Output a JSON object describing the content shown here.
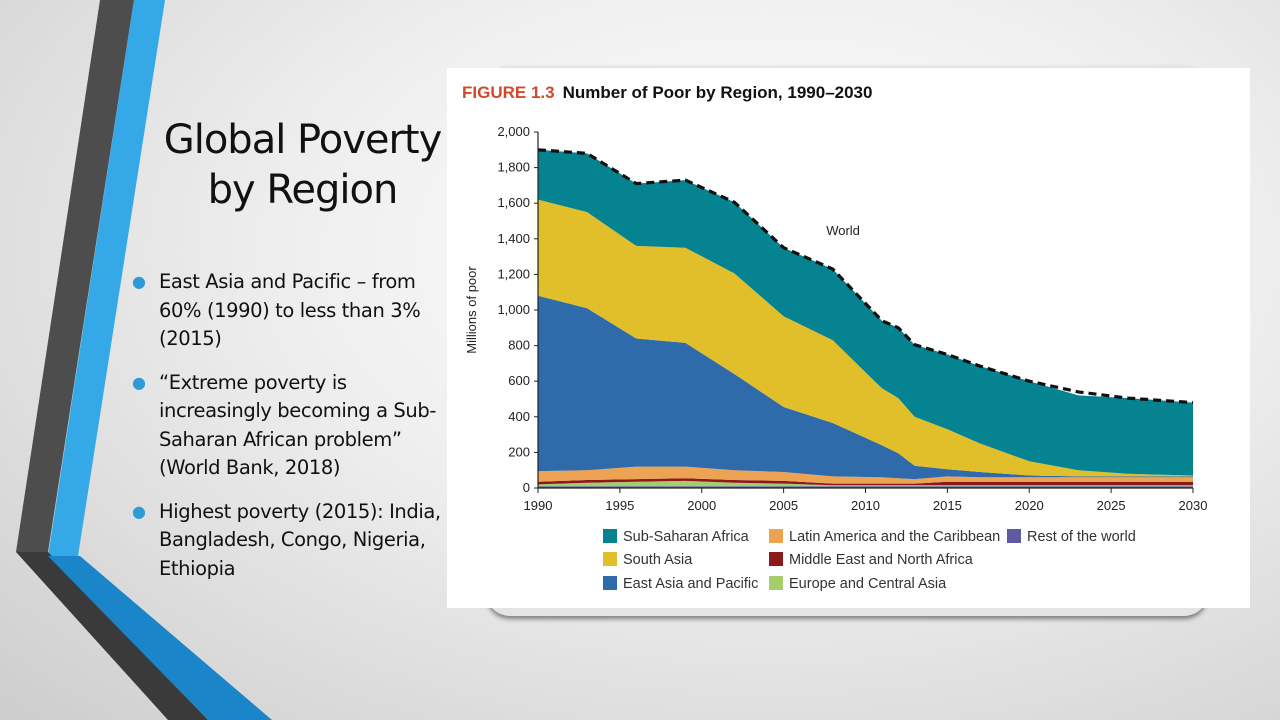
{
  "slide": {
    "title_line1": "Global Poverty",
    "title_line2": "by Region",
    "bullets": [
      "East Asia and Pacific – from 60% (1990) to less than 3% (2015)",
      "“Extreme poverty is increasingly becoming a Sub-Saharan African problem” (World Bank, 2018)",
      "Highest poverty (2015): India, Bangladesh, Congo, Nigeria, Ethiopia"
    ]
  },
  "colors": {
    "figure_label": "#d2492a",
    "accent_blue": "#2e9bd6",
    "stripe_dark": "#4a4a4a",
    "stripe_light_blue": "#35a9e8"
  },
  "chart_data": {
    "type": "area",
    "stacked": true,
    "figure_label": "FIGURE 1.3",
    "title": "Number of Poor by Region, 1990–2030",
    "xlabel": "",
    "ylabel": "Millions of poor",
    "xlim": [
      1990,
      2030
    ],
    "ylim": [
      0,
      2000
    ],
    "x_ticks": [
      1990,
      1995,
      2000,
      2005,
      2010,
      2015,
      2020,
      2025,
      2030
    ],
    "y_ticks": [
      0,
      200,
      400,
      600,
      800,
      1000,
      1200,
      1400,
      1600,
      1800,
      2000
    ],
    "y_tick_labels": [
      "0",
      "200",
      "400",
      "600",
      "800",
      "1,000",
      "1,200",
      "1,400",
      "1,600",
      "1,800",
      "2,000"
    ],
    "x": [
      1990,
      1993,
      1996,
      1999,
      2002,
      2005,
      2008,
      2011,
      2012,
      2013,
      2015,
      2017,
      2020,
      2023,
      2026,
      2030
    ],
    "series": [
      {
        "name": "Rest of the world",
        "color": "#5b5aa3",
        "values": [
          10,
          10,
          10,
          10,
          10,
          10,
          10,
          10,
          10,
          10,
          10,
          10,
          10,
          10,
          10,
          10
        ]
      },
      {
        "name": "Europe and Central Asia",
        "color": "#a6cd6b",
        "values": [
          10,
          20,
          25,
          30,
          20,
          15,
          5,
          5,
          5,
          5,
          5,
          5,
          5,
          5,
          5,
          5
        ]
      },
      {
        "name": "Middle East and North Africa",
        "color": "#8b1a1a",
        "values": [
          15,
          15,
          15,
          15,
          15,
          15,
          10,
          10,
          10,
          10,
          20,
          20,
          20,
          20,
          20,
          20
        ]
      },
      {
        "name": "Latin America and the Caribbean",
        "color": "#eca354",
        "values": [
          60,
          55,
          70,
          65,
          55,
          50,
          40,
          35,
          30,
          25,
          30,
          25,
          25,
          25,
          25,
          25
        ]
      },
      {
        "name": "East Asia and Pacific",
        "color": "#2f6aaa",
        "values": [
          985,
          910,
          720,
          695,
          540,
          365,
          300,
          180,
          140,
          75,
          40,
          30,
          10,
          5,
          5,
          5
        ]
      },
      {
        "name": "South Asia",
        "color": "#e0bf2a",
        "values": [
          540,
          540,
          520,
          535,
          565,
          510,
          465,
          320,
          310,
          275,
          225,
          160,
          80,
          35,
          15,
          5
        ]
      },
      {
        "name": "Sub-Saharan Africa",
        "color": "#058390",
        "values": [
          280,
          330,
          350,
          380,
          400,
          385,
          400,
          380,
          395,
          405,
          420,
          435,
          450,
          420,
          425,
          410
        ]
      }
    ],
    "world": {
      "name": "World",
      "values": [
        1900,
        1880,
        1710,
        1730,
        1605,
        1350,
        1230,
        940,
        900,
        805,
        750,
        685,
        600,
        540,
        505,
        480
      ]
    },
    "legend": {
      "position": "bottom",
      "rows": [
        [
          "Sub-Saharan Africa",
          "Latin America and the Caribbean",
          "Rest of the world"
        ],
        [
          "South Asia",
          "Middle East and North Africa"
        ],
        [
          "East Asia and Pacific",
          "Europe and Central Asia"
        ]
      ]
    }
  }
}
